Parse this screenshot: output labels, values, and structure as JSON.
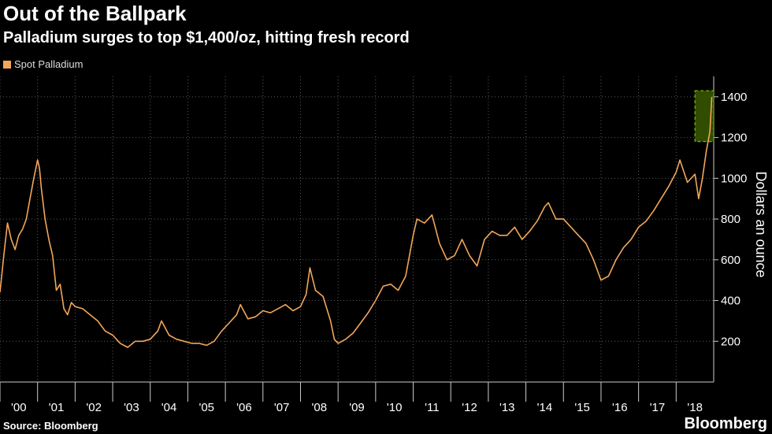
{
  "header": {
    "title": "Out of the Ballpark",
    "subtitle": "Palladium surges to top $1,400/oz, hitting fresh record"
  },
  "footer": {
    "source": "Source: Bloomberg",
    "brand": "Bloomberg"
  },
  "colors": {
    "series": "#f2a65a",
    "highlight_fill": "#3a5a00",
    "highlight_stroke": "#8fd400",
    "grid": "#5a5a5a",
    "background": "#000000"
  },
  "chart_data": {
    "type": "line",
    "title": "Out of the Ballpark",
    "subtitle": "Palladium surges to top $1,400/oz, hitting fresh record",
    "xlabel": "",
    "ylabel": "Dollars an ounce",
    "ylim": [
      0,
      1500
    ],
    "yticks": [
      200,
      400,
      600,
      800,
      1000,
      1200,
      1400
    ],
    "xlim": [
      2000.0,
      2019.0
    ],
    "xtick_labels": [
      "'00",
      "'01",
      "'02",
      "'03",
      "'04",
      "'05",
      "'06",
      "'07",
      "'08",
      "'09",
      "'10",
      "'11",
      "'12",
      "'13",
      "'14",
      "'15",
      "'16",
      "'17",
      "'18"
    ],
    "legend": [
      "Spot Palladium"
    ],
    "legend_position": "top-left",
    "grid": true,
    "highlight": {
      "x_range": [
        2018.5,
        2019.0
      ],
      "y_range": [
        1180,
        1430
      ]
    },
    "series": [
      {
        "name": "Spot Palladium",
        "x": [
          2000.0,
          2000.1,
          2000.2,
          2000.3,
          2000.4,
          2000.5,
          2000.6,
          2000.7,
          2000.8,
          2000.9,
          2001.0,
          2001.05,
          2001.1,
          2001.2,
          2001.3,
          2001.4,
          2001.5,
          2001.6,
          2001.7,
          2001.8,
          2001.9,
          2002.0,
          2002.2,
          2002.4,
          2002.6,
          2002.8,
          2003.0,
          2003.2,
          2003.4,
          2003.6,
          2003.8,
          2004.0,
          2004.2,
          2004.3,
          2004.5,
          2004.7,
          2004.9,
          2005.1,
          2005.3,
          2005.5,
          2005.7,
          2005.9,
          2006.1,
          2006.3,
          2006.4,
          2006.6,
          2006.8,
          2007.0,
          2007.2,
          2007.4,
          2007.6,
          2007.8,
          2008.0,
          2008.15,
          2008.25,
          2008.4,
          2008.6,
          2008.8,
          2008.9,
          2009.0,
          2009.2,
          2009.4,
          2009.6,
          2009.8,
          2010.0,
          2010.2,
          2010.4,
          2010.6,
          2010.8,
          2011.0,
          2011.1,
          2011.3,
          2011.5,
          2011.7,
          2011.9,
          2012.1,
          2012.3,
          2012.5,
          2012.7,
          2012.9,
          2013.1,
          2013.3,
          2013.5,
          2013.7,
          2013.9,
          2014.1,
          2014.3,
          2014.5,
          2014.6,
          2014.8,
          2015.0,
          2015.2,
          2015.4,
          2015.6,
          2015.8,
          2016.0,
          2016.2,
          2016.4,
          2016.6,
          2016.8,
          2017.0,
          2017.2,
          2017.4,
          2017.6,
          2017.8,
          2018.0,
          2018.1,
          2018.3,
          2018.5,
          2018.6,
          2018.7,
          2018.8,
          2018.9,
          2018.95
        ],
        "values": [
          440,
          620,
          780,
          700,
          650,
          720,
          750,
          800,
          900,
          1000,
          1090,
          1050,
          950,
          800,
          700,
          620,
          450,
          480,
          360,
          330,
          390,
          370,
          360,
          330,
          300,
          250,
          230,
          190,
          170,
          200,
          200,
          210,
          250,
          300,
          230,
          210,
          200,
          190,
          190,
          180,
          200,
          250,
          290,
          330,
          380,
          310,
          320,
          350,
          340,
          360,
          380,
          350,
          370,
          430,
          560,
          450,
          420,
          300,
          210,
          190,
          210,
          240,
          290,
          340,
          400,
          470,
          480,
          450,
          520,
          720,
          800,
          780,
          820,
          680,
          600,
          620,
          700,
          620,
          570,
          700,
          740,
          720,
          720,
          760,
          700,
          740,
          790,
          860,
          880,
          800,
          800,
          760,
          720,
          680,
          600,
          500,
          520,
          600,
          660,
          700,
          760,
          790,
          840,
          900,
          960,
          1030,
          1090,
          980,
          1020,
          900,
          1000,
          1130,
          1230,
          1400
        ]
      }
    ]
  }
}
